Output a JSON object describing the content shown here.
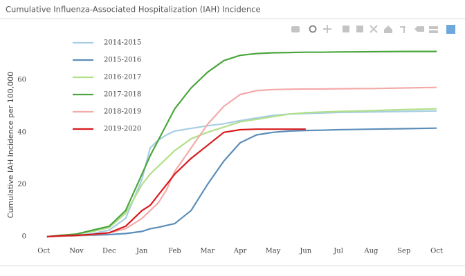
{
  "chart_data": {
    "type": "line",
    "title": "Cumulative Influenza-Associated Hospitalization (IAH) Incidence",
    "y_label": "Cumulative IAH Incidence per 100,000",
    "x": [
      0.1,
      0.5,
      1,
      1.5,
      2,
      2.5,
      3,
      3.25,
      3.5,
      3.75,
      4,
      4.5,
      5,
      5.5,
      6,
      6.5,
      7,
      7.5,
      8,
      8.5,
      9,
      10,
      11,
      12
    ],
    "xlim": [
      -0.49,
      12.4
    ],
    "xticks": [
      {
        "value": 0,
        "label": "Oct"
      },
      {
        "value": 1,
        "label": "Nov"
      },
      {
        "value": 2,
        "label": "Dec"
      },
      {
        "value": 3,
        "label": "Jan"
      },
      {
        "value": 4,
        "label": "Feb"
      },
      {
        "value": 5,
        "label": "Mar"
      },
      {
        "value": 6,
        "label": "Apr"
      },
      {
        "value": 7,
        "label": "May"
      },
      {
        "value": 8,
        "label": "Jun"
      },
      {
        "value": 9,
        "label": "Jul"
      },
      {
        "value": 10,
        "label": "Aug"
      },
      {
        "value": 11,
        "label": "Sep"
      },
      {
        "value": 12,
        "label": "Oct"
      }
    ],
    "ylim": [
      -4.5,
      77.5
    ],
    "yticks": [
      0,
      20,
      40,
      60
    ],
    "grid": false,
    "legend": "upper-left",
    "series": [
      {
        "name": "2014-2015",
        "color": "#a6cee3",
        "values": [
          0,
          0.3,
          0.6,
          1.2,
          2.5,
          7,
          22,
          34,
          37,
          39,
          40.5,
          41.5,
          42.5,
          43.3,
          44.5,
          45.5,
          46.5,
          47,
          47.2,
          47.4,
          47.6,
          47.8,
          48,
          48.2
        ]
      },
      {
        "name": "2015-2016",
        "color": "#5b8db8",
        "values": [
          0,
          0.2,
          0.4,
          0.6,
          0.8,
          1.2,
          2,
          3,
          3.6,
          4.3,
          5,
          10,
          20,
          29,
          36,
          39,
          40,
          40.5,
          40.7,
          40.8,
          41,
          41.2,
          41.4,
          41.6
        ]
      },
      {
        "name": "2016-2017",
        "color": "#b2df8a",
        "values": [
          0,
          0.5,
          1,
          2,
          3.5,
          9,
          20,
          24,
          27,
          30,
          33,
          37.5,
          40,
          42,
          44,
          45,
          46,
          47,
          47.5,
          47.8,
          48,
          48.3,
          48.7,
          49
        ]
      },
      {
        "name": "2017-2018",
        "color": "#4aa63c",
        "values": [
          0,
          0.5,
          1,
          2.5,
          4,
          10,
          24,
          31,
          37,
          43,
          49,
          57,
          63,
          67.5,
          69.5,
          70.2,
          70.5,
          70.6,
          70.7,
          70.7,
          70.8,
          70.9,
          71,
          71
        ]
      },
      {
        "name": "2018-2019",
        "color": "#f4aaa9",
        "values": [
          0,
          0.2,
          0.4,
          0.8,
          1.5,
          3,
          7,
          10,
          13,
          18,
          25,
          34,
          43,
          50,
          54.5,
          56,
          56.4,
          56.5,
          56.6,
          56.6,
          56.7,
          56.8,
          57,
          57.2
        ]
      },
      {
        "name": "2019-2020",
        "color": "#d7191c",
        "values": [
          0,
          0.3,
          0.5,
          0.9,
          1.5,
          4,
          10,
          12,
          16,
          20,
          24,
          30,
          35,
          40,
          41,
          41.2,
          41.2,
          41.2,
          41.2,
          null,
          null,
          null,
          null,
          null
        ]
      }
    ]
  }
}
